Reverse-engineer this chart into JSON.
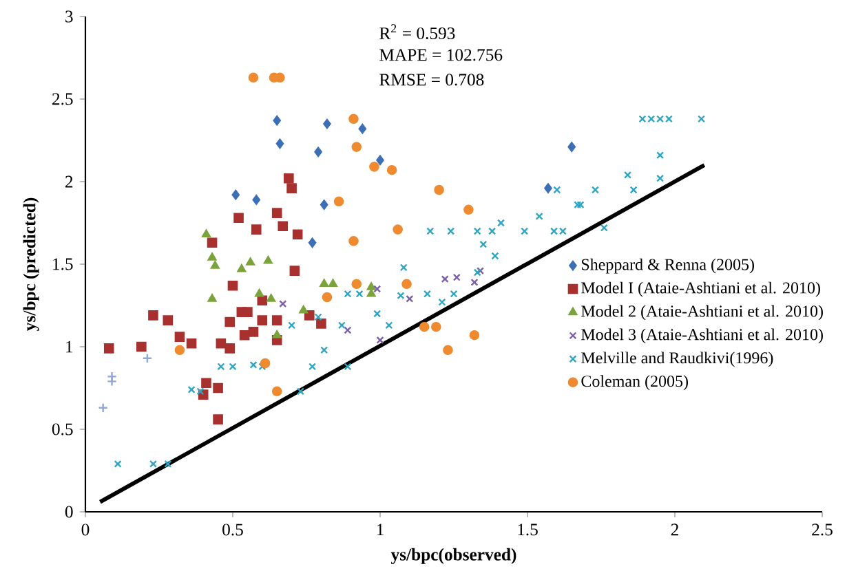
{
  "chart_data": {
    "type": "scatter",
    "xlabel": "ys/bpc(observed)",
    "ylabel": "ys/bpc (predicted)",
    "xlim": [
      0,
      2.5
    ],
    "xticks": [
      0,
      0.5,
      1,
      1.5,
      2,
      2.5
    ],
    "ylim": [
      0,
      3
    ],
    "yticks": [
      0,
      0.5,
      1,
      1.5,
      2,
      2.5,
      3
    ],
    "legend": "right",
    "grid": false,
    "annotations": [
      "R$^{2}$ = 0.593",
      "MAPE = 102.756",
      "RMSE = 0.708"
    ],
    "series": [
      {
        "name": "Sheppard & Renna (2005)",
        "color": "#3c6fb6",
        "marker": "diamond",
        "x": [
          0.65,
          0.66,
          0.82,
          0.94,
          0.79,
          1.0,
          0.51,
          0.58,
          0.81,
          0.77,
          1.65,
          1.57
        ],
        "values": [
          2.37,
          2.23,
          2.35,
          2.32,
          2.18,
          2.13,
          1.92,
          1.89,
          1.86,
          1.63,
          2.21,
          1.96
        ]
      },
      {
        "name": "Model I (Ataie-Ashtiani et al. 2010)",
        "color": "#a8302f",
        "marker": "square",
        "x": [
          0.69,
          0.7,
          0.52,
          0.58,
          0.65,
          0.67,
          0.72,
          0.71,
          0.5,
          0.43,
          0.6,
          0.53,
          0.55,
          0.23,
          0.28,
          0.08,
          0.19,
          0.32,
          0.36,
          0.46,
          0.49,
          0.49,
          0.6,
          0.65,
          0.54,
          0.57,
          0.65,
          0.76,
          0.8,
          0.41,
          0.45,
          0.4,
          0.45
        ],
        "values": [
          2.02,
          1.96,
          1.78,
          1.71,
          1.81,
          1.73,
          1.68,
          1.46,
          1.37,
          1.63,
          1.28,
          1.21,
          1.21,
          1.19,
          1.16,
          0.99,
          1.0,
          1.06,
          1.02,
          1.02,
          0.99,
          1.15,
          1.16,
          1.16,
          1.07,
          1.09,
          1.04,
          1.19,
          1.14,
          0.78,
          0.75,
          0.71,
          0.56
        ]
      },
      {
        "name": "Model 2 (Ataie-Ashtiani et al. 2010)",
        "color": "#7ba33b",
        "marker": "triangle",
        "x": [
          0.41,
          0.43,
          0.44,
          0.53,
          0.56,
          0.62,
          0.43,
          0.59,
          0.63,
          0.81,
          0.84,
          0.74,
          0.65,
          0.97,
          0.97
        ],
        "values": [
          1.68,
          1.54,
          1.49,
          1.47,
          1.51,
          1.52,
          1.29,
          1.32,
          1.29,
          1.38,
          1.38,
          1.22,
          1.07,
          1.36,
          1.32
        ]
      },
      {
        "name": "Model 3 (Ataie-Ashtiani et al. 2010)",
        "color": "#7b5fa8",
        "marker": "cross",
        "x": [
          0.67,
          0.89,
          0.99,
          1.1,
          1.22,
          1.26,
          1.32,
          1.34,
          1.0
        ],
        "values": [
          1.26,
          1.1,
          1.35,
          1.29,
          1.41,
          1.42,
          1.39,
          1.46,
          1.04
        ]
      },
      {
        "name": "Melville and Raudkivi(1996)",
        "color": "#2ea5c2",
        "marker": "cross",
        "x": [
          0.11,
          0.23,
          0.28,
          0.36,
          0.39,
          0.46,
          0.5,
          0.57,
          0.6,
          0.73,
          0.77,
          0.81,
          0.89,
          0.7,
          0.79,
          0.87,
          0.99,
          0.89,
          0.93,
          1.17,
          1.24,
          1.33,
          1.38,
          1.41,
          1.49,
          1.54,
          1.59,
          1.62,
          1.76,
          1.67,
          1.68,
          1.6,
          1.73,
          1.84,
          1.86,
          1.95,
          1.95,
          1.35,
          1.39,
          1.08,
          1.33,
          1.25,
          1.21,
          1.16,
          1.07,
          1.03,
          1.89,
          1.92,
          1.95,
          1.98,
          2.09
        ],
        "values": [
          0.29,
          0.29,
          0.29,
          0.74,
          0.73,
          0.88,
          0.88,
          0.89,
          0.88,
          0.73,
          0.88,
          0.98,
          0.88,
          1.13,
          1.18,
          1.13,
          1.2,
          1.32,
          1.32,
          1.7,
          1.7,
          1.7,
          1.7,
          1.75,
          1.7,
          1.79,
          1.7,
          1.7,
          1.72,
          1.86,
          1.86,
          1.95,
          1.95,
          2.04,
          1.95,
          2.16,
          2.02,
          1.62,
          1.55,
          1.48,
          1.45,
          1.32,
          1.27,
          1.32,
          1.31,
          1.13,
          2.38,
          2.38,
          2.38,
          2.38,
          2.38
        ]
      },
      {
        "name": "Coleman (2005)",
        "color": "#ee8a30",
        "marker": "circle",
        "x": [
          0.57,
          0.64,
          0.66,
          0.91,
          0.92,
          0.98,
          0.86,
          0.91,
          0.92,
          0.82,
          1.04,
          1.2,
          1.3,
          1.06,
          1.09,
          1.15,
          1.19,
          1.32,
          1.23,
          0.32,
          0.61,
          0.65
        ],
        "values": [
          2.63,
          2.63,
          2.63,
          2.38,
          2.21,
          2.09,
          1.88,
          1.64,
          1.38,
          1.3,
          2.07,
          1.95,
          1.83,
          1.71,
          1.38,
          1.12,
          1.12,
          1.07,
          0.98,
          0.98,
          0.9,
          0.73
        ]
      },
      {
        "color": "#8fa8d8",
        "marker": "plus",
        "x": [
          0.21,
          0.09,
          0.09,
          0.06
        ],
        "values": [
          0.93,
          0.82,
          0.79,
          0.63
        ]
      },
      {
        "type": "line",
        "color": "#000000",
        "marker": "none",
        "x": [
          0.05,
          2.1
        ],
        "values": [
          0.06,
          2.1
        ]
      }
    ]
  }
}
